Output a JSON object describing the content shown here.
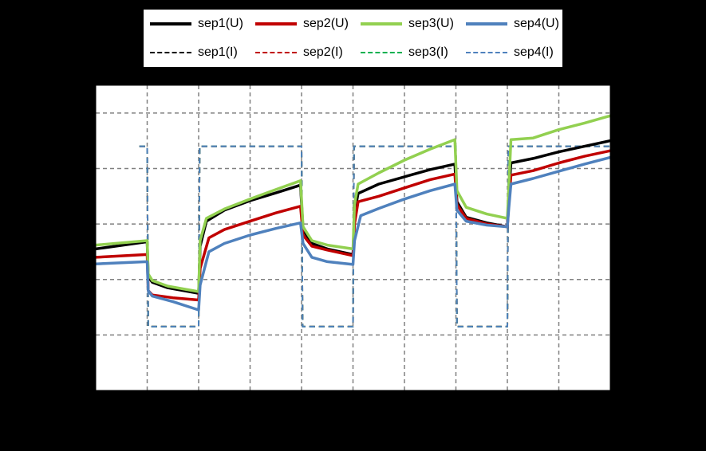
{
  "chart_data": {
    "type": "line",
    "title": "",
    "xlabel": "",
    "ylabel": "",
    "legend_position": "top",
    "grid": true,
    "background": "#ffffff",
    "outer_background": "#000000",
    "series": [
      {
        "name": "sep1(U)",
        "color": "#000000",
        "style": "solid",
        "points": [
          [
            0,
            2.55
          ],
          [
            1,
            2.68
          ],
          [
            1.02,
            2.05
          ],
          [
            1.1,
            1.95
          ],
          [
            1.4,
            1.85
          ],
          [
            2,
            1.75
          ],
          [
            2.03,
            2.6
          ],
          [
            2.15,
            3.05
          ],
          [
            2.5,
            3.25
          ],
          [
            3,
            3.42
          ],
          [
            3.5,
            3.56
          ],
          [
            3.98,
            3.7
          ],
          [
            4.03,
            2.9
          ],
          [
            4.2,
            2.65
          ],
          [
            4.5,
            2.55
          ],
          [
            5,
            2.45
          ],
          [
            5.03,
            3.2
          ],
          [
            5.1,
            3.55
          ],
          [
            5.5,
            3.72
          ],
          [
            6,
            3.85
          ],
          [
            6.5,
            3.98
          ],
          [
            6.98,
            4.08
          ],
          [
            7.02,
            3.4
          ],
          [
            7.2,
            3.12
          ],
          [
            7.6,
            3.02
          ],
          [
            8,
            2.95
          ],
          [
            8.03,
            3.55
          ],
          [
            8.07,
            4.1
          ],
          [
            8.5,
            4.18
          ],
          [
            9,
            4.3
          ],
          [
            9.5,
            4.4
          ],
          [
            10,
            4.5
          ]
        ]
      },
      {
        "name": "sep2(U)",
        "color": "#c00000",
        "style": "solid",
        "points": [
          [
            0,
            2.4
          ],
          [
            1,
            2.45
          ],
          [
            1.02,
            1.8
          ],
          [
            1.1,
            1.72
          ],
          [
            1.5,
            1.67
          ],
          [
            2,
            1.63
          ],
          [
            2.03,
            2.2
          ],
          [
            2.2,
            2.75
          ],
          [
            2.5,
            2.9
          ],
          [
            3,
            3.05
          ],
          [
            3.5,
            3.2
          ],
          [
            3.98,
            3.32
          ],
          [
            4.03,
            2.8
          ],
          [
            4.2,
            2.6
          ],
          [
            4.5,
            2.53
          ],
          [
            5,
            2.43
          ],
          [
            5.03,
            3.0
          ],
          [
            5.1,
            3.4
          ],
          [
            5.5,
            3.5
          ],
          [
            6,
            3.65
          ],
          [
            6.5,
            3.8
          ],
          [
            6.98,
            3.9
          ],
          [
            7.02,
            3.35
          ],
          [
            7.2,
            3.1
          ],
          [
            7.6,
            3.0
          ],
          [
            8,
            2.95
          ],
          [
            8.03,
            3.4
          ],
          [
            8.07,
            3.88
          ],
          [
            8.5,
            3.96
          ],
          [
            9,
            4.1
          ],
          [
            9.5,
            4.22
          ],
          [
            10,
            4.32
          ]
        ]
      },
      {
        "name": "sep3(U)",
        "color": "#92d050",
        "style": "solid",
        "points": [
          [
            0,
            2.62
          ],
          [
            1,
            2.7
          ],
          [
            1.02,
            2.1
          ],
          [
            1.1,
            1.98
          ],
          [
            1.4,
            1.88
          ],
          [
            2,
            1.78
          ],
          [
            2.03,
            2.7
          ],
          [
            2.15,
            3.1
          ],
          [
            2.5,
            3.27
          ],
          [
            3,
            3.45
          ],
          [
            3.5,
            3.62
          ],
          [
            3.98,
            3.78
          ],
          [
            4.03,
            2.95
          ],
          [
            4.2,
            2.7
          ],
          [
            4.5,
            2.62
          ],
          [
            5,
            2.55
          ],
          [
            5.03,
            3.35
          ],
          [
            5.1,
            3.72
          ],
          [
            5.5,
            3.92
          ],
          [
            6,
            4.15
          ],
          [
            6.5,
            4.35
          ],
          [
            6.98,
            4.52
          ],
          [
            7.02,
            3.6
          ],
          [
            7.2,
            3.3
          ],
          [
            7.6,
            3.18
          ],
          [
            8,
            3.1
          ],
          [
            8.03,
            3.7
          ],
          [
            8.07,
            4.52
          ],
          [
            8.5,
            4.55
          ],
          [
            9,
            4.7
          ],
          [
            9.5,
            4.82
          ],
          [
            10,
            4.95
          ]
        ]
      },
      {
        "name": "sep4(U)",
        "color": "#4f81bd",
        "style": "solid",
        "points": [
          [
            0,
            2.28
          ],
          [
            1,
            2.32
          ],
          [
            1.02,
            1.8
          ],
          [
            1.1,
            1.7
          ],
          [
            1.5,
            1.6
          ],
          [
            2,
            1.45
          ],
          [
            2.03,
            1.9
          ],
          [
            2.2,
            2.5
          ],
          [
            2.5,
            2.65
          ],
          [
            3,
            2.8
          ],
          [
            3.5,
            2.92
          ],
          [
            3.98,
            3.02
          ],
          [
            4.03,
            2.65
          ],
          [
            4.2,
            2.4
          ],
          [
            4.5,
            2.32
          ],
          [
            5,
            2.27
          ],
          [
            5.03,
            2.7
          ],
          [
            5.15,
            3.15
          ],
          [
            5.5,
            3.28
          ],
          [
            6,
            3.45
          ],
          [
            6.5,
            3.6
          ],
          [
            6.98,
            3.72
          ],
          [
            7.02,
            3.25
          ],
          [
            7.2,
            3.05
          ],
          [
            7.6,
            2.98
          ],
          [
            8,
            2.95
          ],
          [
            8.03,
            3.3
          ],
          [
            8.07,
            3.72
          ],
          [
            8.5,
            3.82
          ],
          [
            9,
            3.95
          ],
          [
            9.5,
            4.08
          ],
          [
            10,
            4.2
          ]
        ]
      },
      {
        "name": "sep1(I)",
        "color": "#000000",
        "style": "dashed",
        "points": [
          [
            0.85,
            4.4
          ],
          [
            0.98,
            4.4
          ],
          [
            1.0,
            4.4
          ],
          [
            1.02,
            1.15
          ],
          [
            2,
            1.15
          ],
          [
            2.02,
            4.4
          ],
          [
            4,
            4.4
          ],
          [
            4.02,
            1.15
          ],
          [
            5,
            1.15
          ],
          [
            5.02,
            4.4
          ],
          [
            7,
            4.4
          ],
          [
            7.02,
            1.15
          ],
          [
            8,
            1.15
          ],
          [
            8.02,
            4.4
          ],
          [
            10,
            4.4
          ]
        ]
      },
      {
        "name": "sep2(I)",
        "color": "#c00000",
        "style": "dashed",
        "points": [
          [
            0.85,
            4.4
          ],
          [
            1.0,
            4.4
          ],
          [
            1.02,
            1.15
          ],
          [
            2,
            1.15
          ],
          [
            2.02,
            4.4
          ],
          [
            4,
            4.4
          ],
          [
            4.02,
            1.15
          ],
          [
            5,
            1.15
          ],
          [
            5.02,
            4.4
          ],
          [
            7,
            4.4
          ],
          [
            7.02,
            1.15
          ],
          [
            8,
            1.15
          ],
          [
            8.02,
            4.4
          ],
          [
            10,
            4.4
          ]
        ]
      },
      {
        "name": "sep3(I)",
        "color": "#00b050",
        "style": "dashed",
        "points": [
          [
            0.85,
            4.4
          ],
          [
            1.0,
            4.4
          ],
          [
            1.02,
            1.15
          ],
          [
            2,
            1.15
          ],
          [
            2.02,
            4.4
          ],
          [
            4,
            4.4
          ],
          [
            4.02,
            1.15
          ],
          [
            5,
            1.15
          ],
          [
            5.02,
            4.4
          ],
          [
            7,
            4.4
          ],
          [
            7.02,
            1.15
          ],
          [
            8,
            1.15
          ],
          [
            8.02,
            4.4
          ],
          [
            10,
            4.4
          ]
        ]
      },
      {
        "name": "sep4(I)",
        "color": "#4f81bd",
        "style": "dashed",
        "points": [
          [
            0.85,
            4.4
          ],
          [
            1.0,
            4.4
          ],
          [
            1.02,
            1.15
          ],
          [
            2,
            1.15
          ],
          [
            2.02,
            4.4
          ],
          [
            4,
            4.4
          ],
          [
            4.02,
            1.15
          ],
          [
            5,
            1.15
          ],
          [
            5.02,
            4.4
          ],
          [
            7,
            4.4
          ],
          [
            7.02,
            1.15
          ],
          [
            8,
            1.15
          ],
          [
            8.02,
            4.4
          ],
          [
            10,
            4.4
          ]
        ]
      }
    ],
    "xlim": [
      0,
      10
    ],
    "ylim": [
      0,
      5.5
    ],
    "x_gridlines": [
      1,
      2,
      3,
      4,
      5,
      6,
      7,
      8,
      9
    ],
    "y_gridlines": [
      1,
      2,
      3,
      4,
      5
    ]
  }
}
